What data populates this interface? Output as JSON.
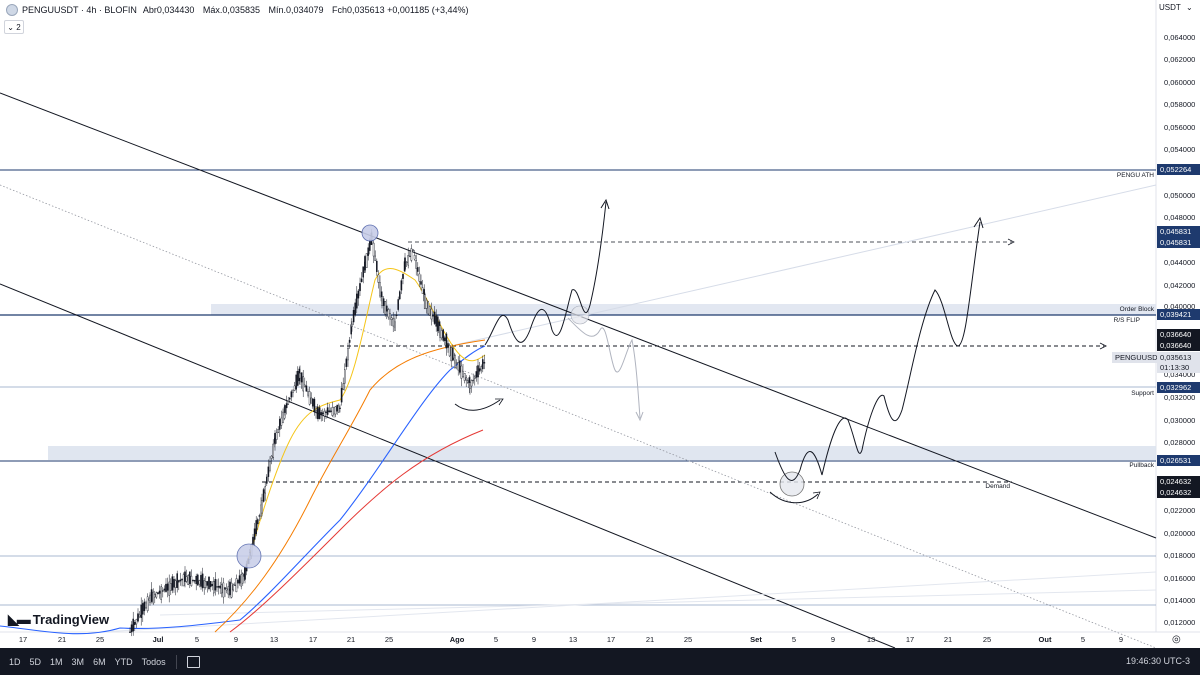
{
  "header": {
    "symbol": "PENGUUSDT · 4h · BLOFIN",
    "open": "Abr0,034430",
    "high": "Máx.0,035835",
    "low": "Mín.0,034079",
    "close": "Fch0,035613",
    "change": "+0,001185 (+3,44%)",
    "indicators_count": "2",
    "currency": "USDT"
  },
  "price_axis": {
    "ticks": [
      "0,064000",
      "0,062000",
      "0,060000",
      "0,058000",
      "0,056000",
      "0,054000",
      "0,050000",
      "0,048000",
      "0,044000",
      "0,042000",
      "0,040000",
      "0,034000",
      "0,032000",
      "0,030000",
      "0,028000",
      "0,022000",
      "0,020000",
      "0,018000",
      "0,016000",
      "0,014000",
      "0,012000"
    ],
    "labels": {
      "ath": "0,052264",
      "high1": "0,045831",
      "high2": "0,045831",
      "rs_flip": "0,039421",
      "mid1": "0,036640",
      "mid2": "0,036640",
      "symbol": "PENGUUSDT",
      "current": "0,035613",
      "countdown": "01:13:30",
      "support": "0,032962",
      "pullback": "0,026531",
      "demand1": "0,024632",
      "demand2": "0,024632"
    }
  },
  "annotations": {
    "ath": "PENGU ATH",
    "order_block": "Order Block",
    "rs_flip": "R/S FLIP",
    "support": "Support",
    "pullback": "Pullback",
    "demand": "Demand"
  },
  "time_axis": [
    "17",
    "21",
    "25",
    "Jul",
    "5",
    "9",
    "13",
    "17",
    "21",
    "25",
    "Ago",
    "5",
    "9",
    "13",
    "17",
    "21",
    "25",
    "Set",
    "5",
    "9",
    "13",
    "17",
    "21",
    "25",
    "Out",
    "5",
    "9"
  ],
  "branding": "TradingView",
  "bottom_bar": {
    "ranges": [
      "1D",
      "5D",
      "1M",
      "3M",
      "6M",
      "YTD",
      "Todos"
    ],
    "clock": "19:46:30 UTC-3"
  },
  "colors": {
    "ema_fast": "#f5c518",
    "ema_mid": "#f57c00",
    "ema_slow": "#2962ff",
    "ema_long": "#e53935",
    "level_navy": "#1e3a6e",
    "zone": "#dde3ee"
  }
}
